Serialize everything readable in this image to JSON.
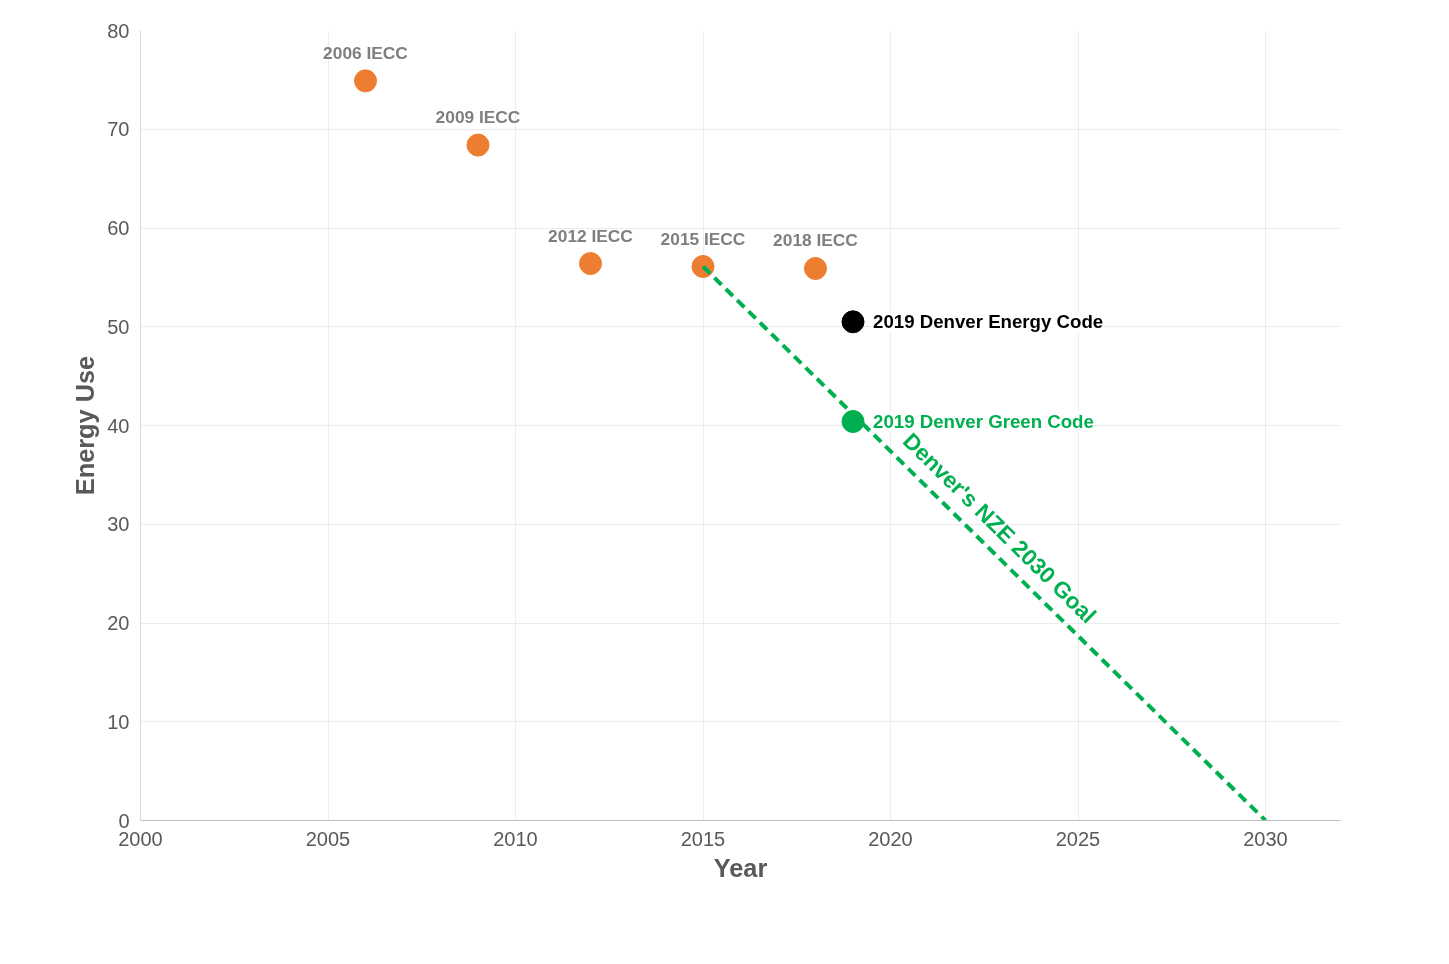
{
  "chart_data": {
    "type": "scatter",
    "xlabel": "Year",
    "ylabel": "Energy Use",
    "xlim": [
      2000,
      2032
    ],
    "xticks": [
      2000,
      2005,
      2010,
      2015,
      2020,
      2025,
      2030
    ],
    "ylim": [
      0,
      80
    ],
    "yticks": [
      0,
      10,
      20,
      30,
      40,
      50,
      60,
      70,
      80
    ],
    "grid": true,
    "legend": false,
    "marker": "circle",
    "series": [
      {
        "color": "#ed7d31",
        "x": [
          2006,
          2009,
          2012,
          2015,
          2018
        ],
        "values": [
          74.9,
          68.4,
          56.4,
          56.1,
          55.9
        ]
      },
      {
        "name": "2019 Denver Energy Code",
        "color": "#000000",
        "x": [
          2019
        ],
        "values": [
          50.5
        ]
      },
      {
        "name": "2019 Denver Green Code",
        "color": "#00b050",
        "x": [
          2019
        ],
        "values": [
          40.4
        ]
      },
      {
        "type": "line",
        "name": "Denver's NZE 2030 Goal",
        "color": "#00b050",
        "line_style": "dashed",
        "marker": "none",
        "x": [
          2015,
          2030
        ],
        "values": [
          56.1,
          0
        ]
      }
    ],
    "annotations": [
      {
        "text": "2006 IECC",
        "x": 2006,
        "y": 74.9
      },
      {
        "text": "2009 IECC",
        "x": 2009,
        "y": 68.4
      },
      {
        "text": "2012 IECC",
        "x": 2012,
        "y": 56.4
      },
      {
        "text": "2015 IECC",
        "x": 2015,
        "y": 56.1
      },
      {
        "text": "2018 IECC",
        "x": 2018,
        "y": 55.9
      }
    ]
  }
}
